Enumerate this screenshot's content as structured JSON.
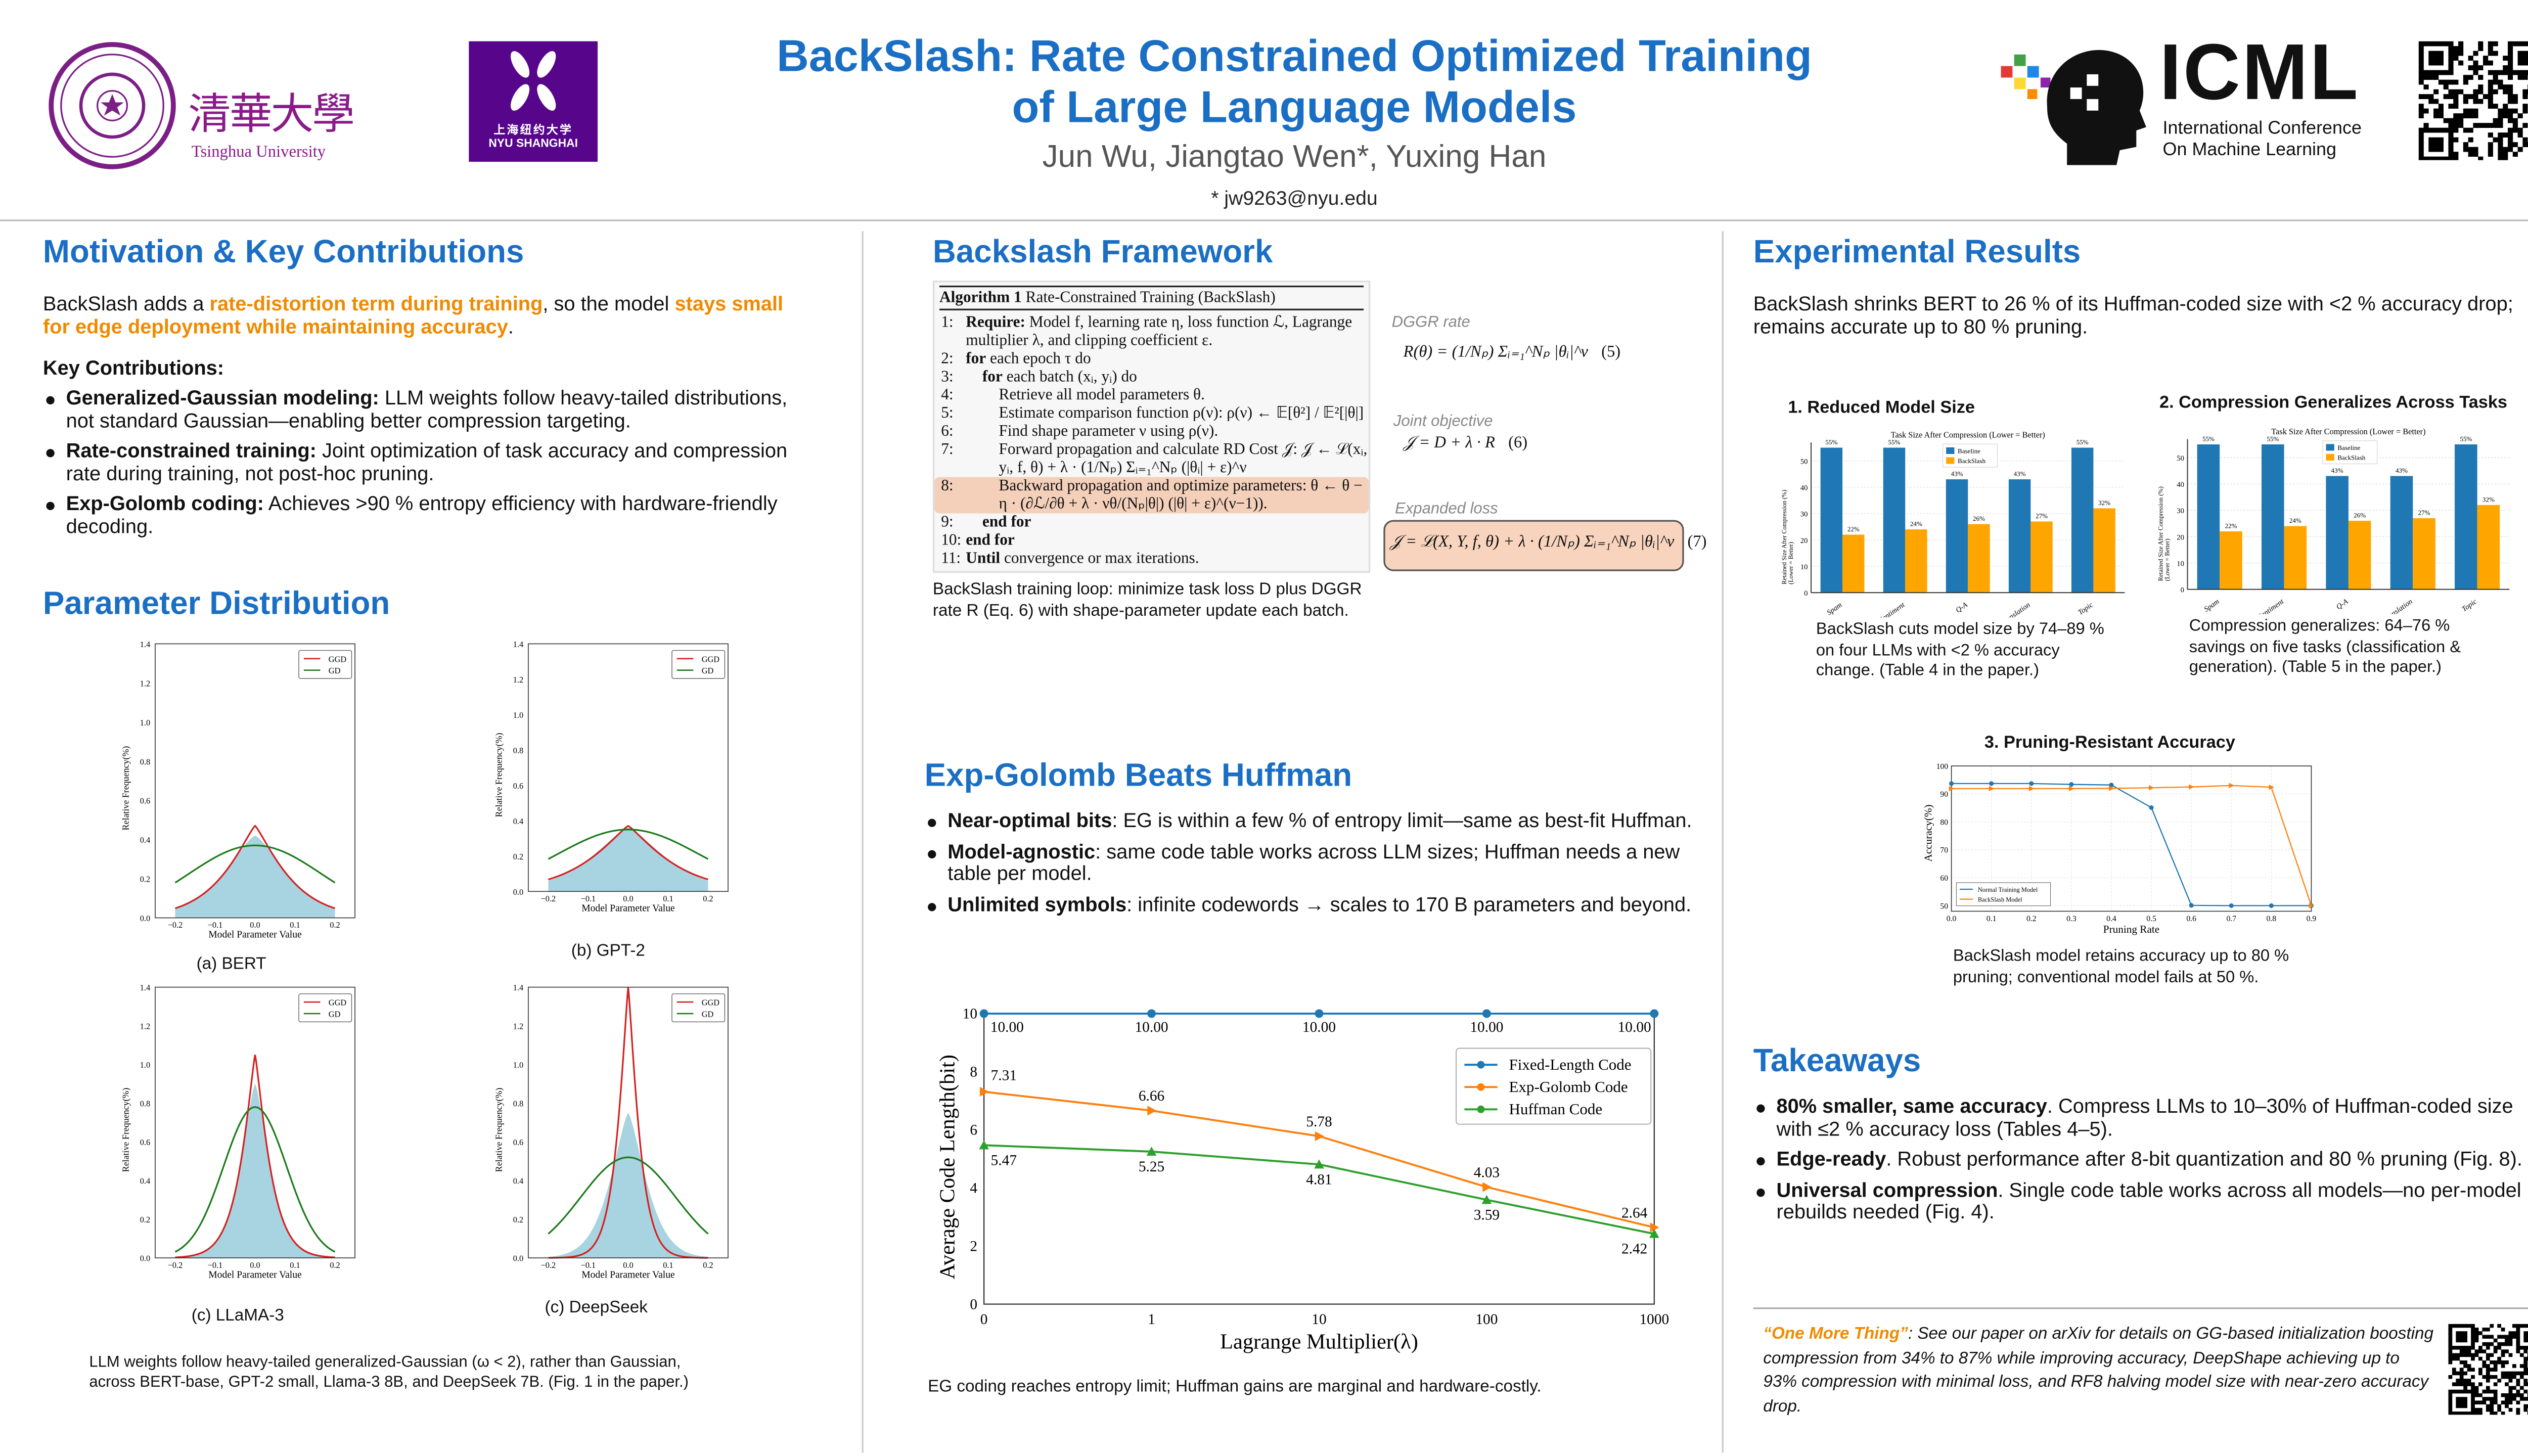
{
  "header": {
    "title_line1": "BackSlash: Rate Constrained Optimized Training",
    "title_line2": "of Large Language Models",
    "authors": "Jun Wu, Jiangtao Wen*, Yuxing Han",
    "email": "* jw9263@nyu.edu",
    "logos": {
      "tsinghua_seal": "TSINGHUA UNIVERSITY 1911",
      "tsinghua_chinese": "清華大學",
      "tsinghua_english": "Tsinghua University",
      "nyu_chinese": "上海纽约大学",
      "nyu_english": "NYU SHANGHAI",
      "icml": "ICML",
      "icml_line1": "International Conference",
      "icml_line2": "On Machine Learning"
    },
    "brand_color": "#1a6fc4",
    "accent_color": "#f08a00"
  },
  "motivation": {
    "heading": "Motivation & Key Contributions",
    "intro": [
      "BackSlash adds a ",
      "rate-distortion term during training",
      ", so the model ",
      "stays small for edge deployment while maintaining accuracy",
      "."
    ],
    "contrib_heading": "Key Contributions:",
    "bullets": [
      {
        "bold": "Generalized-Gaussian modeling:",
        "text": " LLM weights follow heavy-tailed distributions, not standard Gaussian—enabling better compression targeting."
      },
      {
        "bold": "Rate-constrained training:",
        "text": " Joint optimization of task accuracy and compression rate during training, not post-hoc pruning."
      },
      {
        "bold": "Exp-Golomb coding:",
        "text": " Achieves >90 % entropy efficiency with hardware-friendly decoding."
      }
    ]
  },
  "distribution": {
    "heading": "Parameter Distribution",
    "caption": "LLM weights follow heavy-tailed generalized-Gaussian (ω < 2), rather than Gaussian, across BERT-base, GPT-2 small, Llama-3 8B, and DeepSeek 7B. (Fig. 1 in the paper.)"
  },
  "framework": {
    "heading": "Backslash Framework",
    "algo_title_bold": "Algorithm 1",
    "algo_title": " Rate-Constrained Training (BackSlash)",
    "lines": [
      {
        "n": "1:",
        "bold": "Require:",
        "text": " Model f, learning rate η, loss function ℒ, Lagrange multiplier λ, and clipping coefficient ε."
      },
      {
        "n": "2:",
        "bold": "for",
        "text": " each epoch τ do"
      },
      {
        "n": "3:",
        "bold": "for",
        "text": " each batch (xᵢ, yᵢ) do"
      },
      {
        "n": "4:",
        "bold": "",
        "text": "Retrieve all model parameters θ."
      },
      {
        "n": "5:",
        "bold": "",
        "text": "Estimate comparison function ρ(ν): ρ(ν) ← 𝔼[θ²] / 𝔼²[|θ|]"
      },
      {
        "n": "6:",
        "bold": "",
        "text": "Find shape parameter ν using ρ(ν)."
      },
      {
        "n": "7:",
        "bold": "",
        "text": "Forward propagation and calculate RD Cost 𝒥: 𝒥 ← ℒ(xᵢ, yᵢ, f, θ) + λ · (1/Nₚ) Σᵢ₌₁^Nₚ (|θᵢ| + ε)^ν"
      },
      {
        "n": "8:",
        "bold": "",
        "text": "Backward propagation and optimize parameters: θ ← θ − η · (∂ℒ/∂θ + λ · νθ/(Nₚ|θ|) (|θ| + ε)^(ν−1))."
      },
      {
        "n": "9:",
        "bold": "end for",
        "text": ""
      },
      {
        "n": "10:",
        "bold": "end for",
        "text": ""
      },
      {
        "n": "11:",
        "bold": "Until",
        "text": " convergence or max iterations."
      }
    ],
    "eq5_label": "DGGR rate",
    "eq5": "R(θ) = (1/Nₚ) Σᵢ₌₁^Nₚ |θᵢ|^ν",
    "eq5_num": "(5)",
    "eq6_label": "Joint objective",
    "eq6": "𝒥 = D + λ · R",
    "eq6_num": "(6)",
    "eq7_label": "Expanded loss",
    "eq7": "𝒥 = ℒ(X, Y, f, θ) + λ · (1/Nₚ) Σᵢ₌₁^Nₚ |θᵢ|^ν",
    "eq7_num": "(7)",
    "caption": "BackSlash training loop: minimize task loss D plus DGGR rate R (Eq. 6) with shape-parameter update each batch."
  },
  "expgolomb": {
    "heading": "Exp-Golomb Beats Huffman",
    "bullets": [
      {
        "bold": "Near-optimal bits",
        "text": ": EG is within a few % of entropy limit—same as best-fit Huffman."
      },
      {
        "bold": "Model-agnostic",
        "text": ": same code table works across LLM sizes; Huffman needs a new table per model."
      },
      {
        "bold": "Unlimited symbols",
        "text": ": infinite codewords → scales to 170 B parameters and beyond."
      }
    ],
    "caption": "EG coding reaches entropy limit; Huffman gains are marginal and hardware-costly."
  },
  "results": {
    "heading": "Experimental Results",
    "intro": "BackSlash shrinks BERT to 26 % of its Huffman-coded size with <2 % accuracy drop; remains accurate up to 80 % pruning.",
    "chart1_title": "1. Reduced Model Size",
    "chart1_caption": "BackSlash cuts model size by 74–89 % on four LLMs with <2 % accuracy change. (Table 4 in the paper.)",
    "chart2_title": "2. Compression Generalizes Across Tasks",
    "chart2_caption": "Compression generalizes: 64–76 % savings on five tasks (classification & generation). (Table 5 in the paper.)",
    "chart3_title": "3. Pruning-Resistant Accuracy",
    "chart3_caption": "BackSlash model retains accuracy up to 80 % pruning; conventional model fails at 50 %."
  },
  "takeaways": {
    "heading": "Takeaways",
    "bullets": [
      {
        "bold": "80% smaller, same accuracy",
        "text": ". Compress LLMs to 10–30% of Huffman-coded size with ≤2 % accuracy loss (Tables 4–5)."
      },
      {
        "bold": "Edge-ready",
        "text": ". Robust performance  after 8-bit quantization and 80 % pruning (Fig. 8)."
      },
      {
        "bold": "Universal compression",
        "text": ". Single code table works across all models—no per-model rebuilds needed (Fig. 4)."
      }
    ]
  },
  "one_more_thing": {
    "label": "“One More Thing”",
    "text": ": See our paper on arXiv for details on GG-based initialization boosting compression from 34% to 87% while improving accuracy, DeepShape achieving up to 93% compression with minimal loss, and RF8 halving model size with near-zero accuracy drop."
  },
  "chart_data": [
    {
      "id": "dist_bert",
      "type": "line",
      "caption": "(a) BERT",
      "xlabel": "Model Parameter Value",
      "ylabel": "Relative Frequency(%)",
      "xlim": [
        -0.25,
        0.25
      ],
      "ylim": [
        0,
        1.4
      ],
      "xticks": [
        "−0.2",
        "−0.1",
        "0.0",
        "0.1",
        "0.2"
      ],
      "yticks": [
        "0.0",
        "0.2",
        "0.4",
        "0.6",
        "0.8",
        "1.0",
        "1.2",
        "1.4"
      ],
      "series": [
        {
          "name": "GGD",
          "color": "#d62020",
          "peak": 0.47
        },
        {
          "name": "GD",
          "color": "#1a7a1a",
          "peak": 0.37
        }
      ],
      "histogram_peak": 0.42,
      "legend": "top-right"
    },
    {
      "id": "dist_gpt2",
      "type": "line",
      "caption": "(b) GPT-2",
      "xlabel": "Model Parameter Value",
      "ylabel": "Relative Frequency(%)",
      "xlim": [
        -0.25,
        0.25
      ],
      "ylim": [
        0,
        1.4
      ],
      "xticks": [
        "−0.2",
        "−0.1",
        "0.0",
        "0.1",
        "0.2"
      ],
      "yticks": [
        "0.0",
        "0.2",
        "0.4",
        "0.6",
        "0.8",
        "1.0",
        "1.2",
        "1.4"
      ],
      "series": [
        {
          "name": "GGD",
          "color": "#d62020",
          "peak": 0.37
        },
        {
          "name": "GD",
          "color": "#1a7a1a",
          "peak": 0.35
        }
      ],
      "histogram_peak": 0.36,
      "legend": "top-right"
    },
    {
      "id": "dist_llama",
      "type": "line",
      "caption": "(c) LLaMA-3",
      "xlabel": "Model Parameter Value",
      "ylabel": "Relative Frequency(%)",
      "xlim": [
        -0.25,
        0.25
      ],
      "ylim": [
        0,
        1.4
      ],
      "xticks": [
        "−0.2",
        "−0.1",
        "0.0",
        "0.1",
        "0.2"
      ],
      "yticks": [
        "0.0",
        "0.2",
        "0.4",
        "0.6",
        "0.8",
        "1.0",
        "1.2",
        "1.4"
      ],
      "series": [
        {
          "name": "GGD",
          "color": "#d62020",
          "peak": 1.05
        },
        {
          "name": "GD",
          "color": "#1a7a1a",
          "peak": 0.78
        }
      ],
      "histogram_peak": 0.9,
      "legend": "top-right"
    },
    {
      "id": "dist_deepseek",
      "type": "line",
      "caption": "(c) DeepSeek",
      "xlabel": "Model Parameter Value",
      "ylabel": "Relative Frequency(%)",
      "xlim": [
        -0.25,
        0.25
      ],
      "ylim": [
        0,
        1.4
      ],
      "xticks": [
        "−0.2",
        "−0.1",
        "0.0",
        "0.1",
        "0.2"
      ],
      "yticks": [
        "0.0",
        "0.2",
        "0.4",
        "0.6",
        "0.8",
        "1.0",
        "1.2",
        "1.4"
      ],
      "series": [
        {
          "name": "GGD",
          "color": "#d62020",
          "peak": 1.4
        },
        {
          "name": "GD",
          "color": "#1a7a1a",
          "peak": 0.52
        }
      ],
      "histogram_peak": 0.75,
      "legend": "top-right"
    },
    {
      "id": "code_length",
      "type": "line",
      "xlabel": "Lagrange Multiplier(λ)",
      "ylabel": "Average Code Length(bit)",
      "categories": [
        "0",
        "1",
        "10",
        "100",
        "1000"
      ],
      "ylim": [
        0,
        10
      ],
      "yticks": [
        "0",
        "2",
        "4",
        "6",
        "8",
        "10"
      ],
      "legend": "top-right",
      "grid": false,
      "series": [
        {
          "name": "Fixed-Length Code",
          "color": "#1f77b4",
          "marker": "circle",
          "values": [
            10.0,
            10.0,
            10.0,
            10.0,
            10.0
          ],
          "labels": [
            "10.00",
            "10.00",
            "10.00",
            "10.00",
            "10.00"
          ]
        },
        {
          "name": "Exp-Golomb Code",
          "color": "#ff7f0e",
          "marker": "triangle-right",
          "values": [
            7.31,
            6.66,
            5.78,
            4.03,
            2.64
          ],
          "labels": [
            "7.31",
            "6.66",
            "5.78",
            "4.03",
            "2.64"
          ]
        },
        {
          "name": "Huffman Code",
          "color": "#2ca02c",
          "marker": "triangle-up",
          "values": [
            5.47,
            5.25,
            4.81,
            3.59,
            2.42
          ],
          "labels": [
            "5.47",
            "5.25",
            "4.81",
            "3.59",
            "2.42"
          ]
        }
      ]
    },
    {
      "id": "model_size",
      "type": "bar",
      "title": "Task Size After Compression (Lower = Better)",
      "ylabel": "Retained Size After Compression (%)\n(Lower = Better)",
      "categories": [
        "Spam",
        "Sentiment",
        "Q-A",
        "Translation",
        "Topic"
      ],
      "ylim": [
        0,
        57
      ],
      "yticks": [
        "0",
        "10",
        "20",
        "30",
        "40",
        "50"
      ],
      "legend": "top-center",
      "grid": true,
      "series": [
        {
          "name": "Baseline",
          "color": "#1f77b4",
          "values": [
            55,
            55,
            43,
            43,
            55
          ],
          "labels": [
            "55%",
            "55%",
            "43%",
            "43%",
            "55%"
          ]
        },
        {
          "name": "BackSlash",
          "color": "#ffa500",
          "values": [
            22,
            24,
            26,
            27,
            32
          ],
          "labels": [
            "22%",
            "24%",
            "26%",
            "27%",
            "32%"
          ]
        }
      ]
    },
    {
      "id": "task_generalization",
      "type": "bar",
      "title": "Task Size After Compression (Lower = Better)",
      "ylabel": "Retained Size After Compression (%)\n(Lower = Better)",
      "categories": [
        "Spam",
        "Sentiment",
        "Q-A",
        "Translation",
        "Topic"
      ],
      "ylim": [
        0,
        57
      ],
      "yticks": [
        "0",
        "10",
        "20",
        "30",
        "40",
        "50"
      ],
      "legend": "top-center",
      "grid": true,
      "series": [
        {
          "name": "Baseline",
          "color": "#1f77b4",
          "values": [
            55,
            55,
            43,
            43,
            55
          ],
          "labels": [
            "55%",
            "55%",
            "43%",
            "43%",
            "55%"
          ]
        },
        {
          "name": "BackSlash",
          "color": "#ffa500",
          "values": [
            22,
            24,
            26,
            27,
            32
          ],
          "labels": [
            "22%",
            "24%",
            "26%",
            "27%",
            "32%"
          ]
        }
      ]
    },
    {
      "id": "pruning",
      "type": "line",
      "xlabel": "Pruning Rate",
      "ylabel": "Accuracy(%)",
      "x": [
        0.0,
        0.1,
        0.2,
        0.3,
        0.4,
        0.5,
        0.6,
        0.7,
        0.8,
        0.9
      ],
      "xticks": [
        "0.0",
        "0.1",
        "0.2",
        "0.3",
        "0.4",
        "0.5",
        "0.6",
        "0.7",
        "0.8",
        "0.9"
      ],
      "xlim": [
        0,
        0.9
      ],
      "ylim": [
        48,
        100
      ],
      "yticks": [
        "50",
        "60",
        "70",
        "80",
        "90",
        "100"
      ],
      "grid": true,
      "legend": "bottom-left",
      "series": [
        {
          "name": "Normal Training Model",
          "color": "#1f77b4",
          "marker": "circle",
          "values": [
            93.7,
            93.7,
            93.7,
            93.4,
            93.2,
            85.1,
            50.1,
            50.0,
            50.0,
            50.0
          ]
        },
        {
          "name": "BackSlash Model",
          "color": "#ff7f0e",
          "marker": "triangle-right",
          "values": [
            91.9,
            91.9,
            91.9,
            91.9,
            92.0,
            92.2,
            92.5,
            93.0,
            92.4,
            50.0
          ]
        }
      ]
    }
  ]
}
